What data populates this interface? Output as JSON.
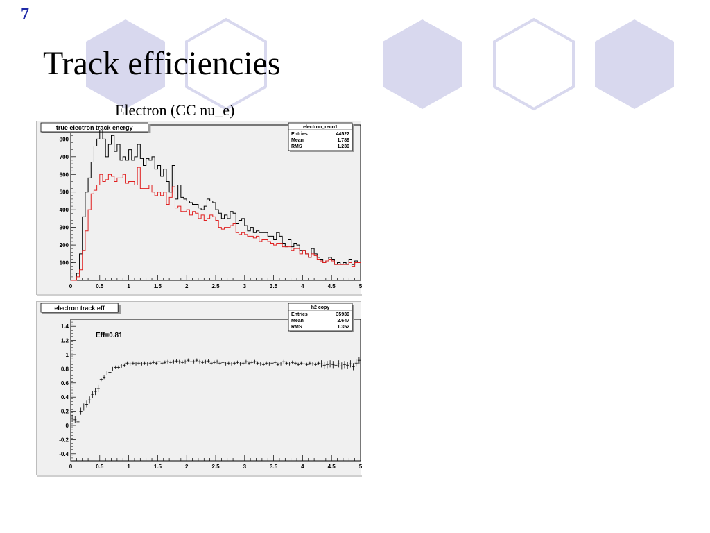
{
  "slide_number": "7",
  "title": "Track efficiencies",
  "subtitle": "Electron (CC nu_e)",
  "colors": {
    "hex_fill": "#d8d8ee",
    "hex_stroke": "#d8d8ee",
    "true_hist": "#000000",
    "reco_hist": "#e02020",
    "panel_bg": "#f0f0f0"
  },
  "chart_data": [
    {
      "type": "line",
      "title": "true electron track energy",
      "xlim": [
        0,
        5
      ],
      "ylim": [
        0,
        880
      ],
      "x_ticks": [
        "0",
        "0.5",
        "1",
        "1.5",
        "2",
        "2.5",
        "3",
        "3.5",
        "4",
        "4.5",
        "5"
      ],
      "y_ticks": [
        "100",
        "200",
        "300",
        "400",
        "500",
        "600",
        "700",
        "800"
      ],
      "stats_box": {
        "title": "electron_reco1",
        "rows": [
          [
            "Entries",
            "44522"
          ],
          [
            "Mean",
            "1.789"
          ],
          [
            "RMS",
            "1.239"
          ]
        ]
      },
      "bin_width": 0.05,
      "series": [
        {
          "name": "",
          "color": "#000000",
          "values": [
            0,
            0,
            40,
            150,
            360,
            500,
            580,
            670,
            760,
            800,
            850,
            800,
            700,
            770,
            820,
            730,
            770,
            680,
            700,
            680,
            740,
            680,
            700,
            770,
            690,
            650,
            690,
            680,
            700,
            630,
            650,
            590,
            630,
            560,
            500,
            650,
            460,
            540,
            470,
            460,
            450,
            440,
            430,
            430,
            410,
            400,
            420,
            460,
            450,
            440,
            400,
            380,
            350,
            370,
            350,
            390,
            380,
            320,
            340,
            350,
            310,
            280,
            300,
            270,
            280,
            270,
            270,
            270,
            250,
            250,
            230,
            270,
            250,
            210,
            190,
            230,
            190,
            210,
            200,
            170,
            170,
            150,
            130,
            180,
            150,
            130,
            120,
            100,
            110,
            130,
            120,
            90,
            100,
            90,
            100,
            90,
            120,
            90,
            110,
            100
          ]
        },
        {
          "name": "",
          "color": "#e02020",
          "values": [
            0,
            0,
            20,
            60,
            170,
            280,
            400,
            490,
            510,
            540,
            600,
            560,
            570,
            600,
            590,
            560,
            580,
            580,
            600,
            550,
            560,
            560,
            540,
            640,
            520,
            520,
            520,
            540,
            500,
            480,
            500,
            480,
            500,
            430,
            470,
            530,
            410,
            420,
            390,
            390,
            400,
            370,
            390,
            380,
            350,
            370,
            340,
            350,
            370,
            360,
            340,
            300,
            290,
            300,
            300,
            310,
            320,
            270,
            260,
            270,
            260,
            250,
            250,
            240,
            250,
            220,
            230,
            230,
            220,
            210,
            200,
            210,
            210,
            190,
            190,
            190,
            170,
            180,
            180,
            150,
            170,
            150,
            130,
            150,
            140,
            120,
            110,
            100,
            110,
            120,
            110,
            90,
            90,
            90,
            90,
            90,
            100,
            80,
            100,
            100
          ]
        }
      ]
    },
    {
      "type": "scatter",
      "title": "electron track eff",
      "annotation": "Eff=0.81",
      "xlim": [
        0,
        5
      ],
      "ylim": [
        -0.5,
        1.5
      ],
      "x_ticks": [
        "0",
        "0.5",
        "1",
        "1.5",
        "2",
        "2.5",
        "3",
        "3.5",
        "4",
        "4.5",
        "5"
      ],
      "y_ticks": [
        "-0.4",
        "-0.2",
        "0",
        "0.2",
        "0.4",
        "0.6",
        "0.8",
        "1",
        "1.2",
        "1.4"
      ],
      "stats_box": {
        "title": "h2 copy",
        "rows": [
          [
            "Entries",
            "35939"
          ],
          [
            "Mean",
            "2.647"
          ],
          [
            "RMS",
            "1.352"
          ]
        ]
      },
      "bin_width": 0.05,
      "values": [
        0.1,
        0.08,
        0.05,
        0.2,
        0.26,
        0.3,
        0.36,
        0.44,
        0.48,
        0.52,
        0.65,
        0.68,
        0.74,
        0.75,
        0.8,
        0.82,
        0.82,
        0.84,
        0.85,
        0.88,
        0.87,
        0.88,
        0.87,
        0.88,
        0.87,
        0.88,
        0.87,
        0.88,
        0.89,
        0.88,
        0.9,
        0.88,
        0.89,
        0.9,
        0.89,
        0.9,
        0.91,
        0.9,
        0.89,
        0.9,
        0.92,
        0.9,
        0.9,
        0.92,
        0.9,
        0.89,
        0.9,
        0.91,
        0.88,
        0.89,
        0.9,
        0.88,
        0.89,
        0.87,
        0.88,
        0.87,
        0.88,
        0.89,
        0.87,
        0.88,
        0.9,
        0.88,
        0.89,
        0.9,
        0.88,
        0.87,
        0.86,
        0.88,
        0.87,
        0.88,
        0.89,
        0.86,
        0.87,
        0.9,
        0.88,
        0.87,
        0.89,
        0.88,
        0.86,
        0.88,
        0.87,
        0.86,
        0.88,
        0.87,
        0.86,
        0.88,
        0.87,
        0.85,
        0.86,
        0.87,
        0.86,
        0.85,
        0.87,
        0.84,
        0.86,
        0.85,
        0.87,
        0.83,
        0.88,
        0.92
      ]
    }
  ]
}
